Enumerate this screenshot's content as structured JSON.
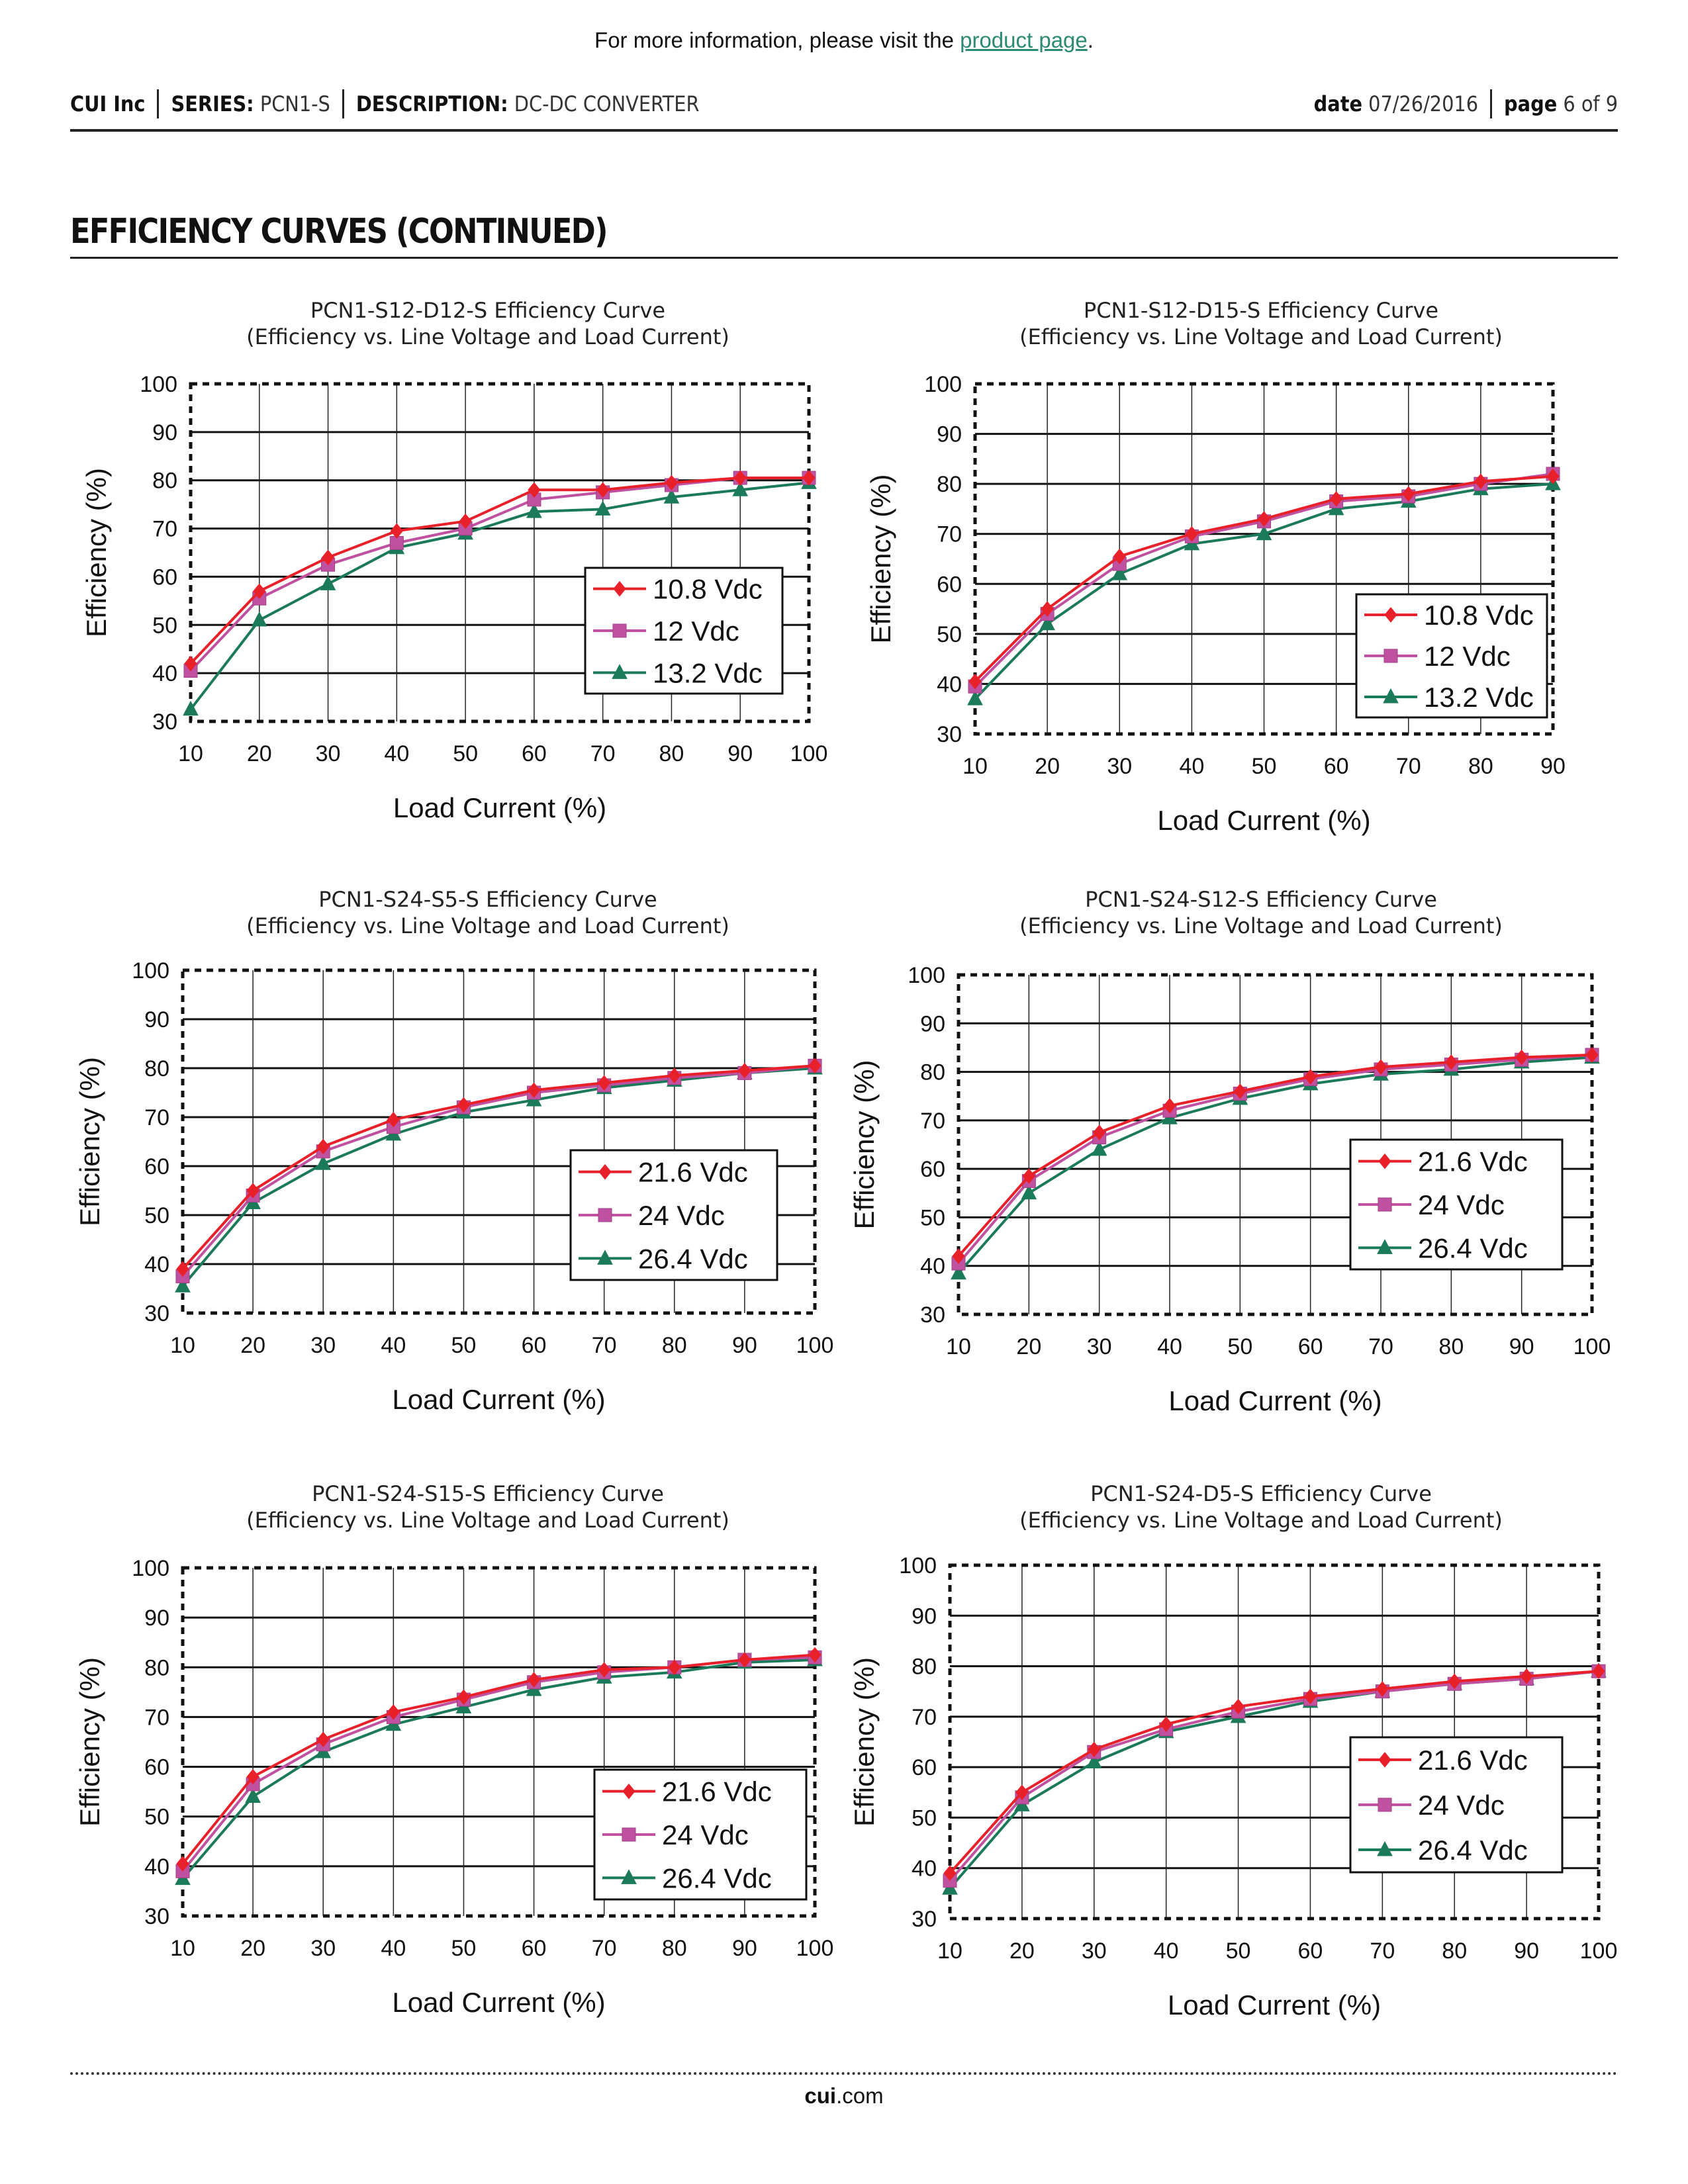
{
  "top_note": {
    "prefix": "For more information, please visit the ",
    "link": "product page",
    "suffix": "."
  },
  "header": {
    "company": "CUI Inc",
    "series_label": "SERIES:",
    "series_value": "PCN1-S",
    "description_label": "DESCRIPTION:",
    "description_value": "DC-DC CONVERTER",
    "date_label": "date",
    "date_value": "07/26/2016",
    "page_label": "page",
    "page_value": "6 of 9"
  },
  "section_title": "EFFICIENCY CURVES (CONTINUED)",
  "footer": {
    "brand": "cui",
    "domain": ".com"
  },
  "colors": {
    "red": "#e8202a",
    "magenta": "#c050a0",
    "green": "#1a7a5a",
    "grid": "#111111"
  },
  "chart_data": [
    {
      "type": "line",
      "title": "PCN1-S12-D12-S Efficiency Curve",
      "subtitle": "(Efficiency vs. Line Voltage and Load Current)",
      "xlabel": "Load Current (%)",
      "ylabel": "Efficiency (%)",
      "x": [
        10,
        20,
        30,
        40,
        50,
        60,
        70,
        80,
        90,
        100
      ],
      "xlim": [
        10,
        100
      ],
      "ylim": [
        30,
        100
      ],
      "yticks": [
        30,
        40,
        50,
        60,
        70,
        80,
        90,
        100
      ],
      "grid": true,
      "legend": "lower-right",
      "series": [
        {
          "name": "10.8 Vdc",
          "marker": "diamond",
          "values": [
            42,
            57,
            64,
            69.5,
            71.5,
            78,
            78,
            79.5,
            80.5,
            80.5
          ]
        },
        {
          "name": "12 Vdc",
          "marker": "square",
          "values": [
            40.5,
            55.5,
            62.5,
            67,
            70,
            76,
            77.5,
            79,
            80.5,
            80.5
          ]
        },
        {
          "name": "13.2 Vdc",
          "marker": "triangle",
          "values": [
            32.5,
            51,
            58.5,
            66,
            69,
            73.5,
            74,
            76.5,
            78,
            79.5
          ]
        }
      ]
    },
    {
      "type": "line",
      "title": "PCN1-S12-D15-S Efficiency Curve",
      "subtitle": "(Efficiency vs. Line Voltage and Load Current)",
      "xlabel": "Load Current (%)",
      "ylabel": "Efficiency (%)",
      "x": [
        10,
        20,
        30,
        40,
        50,
        60,
        70,
        80,
        90
      ],
      "xlim": [
        10,
        90
      ],
      "ylim": [
        30,
        100
      ],
      "yticks": [
        30,
        40,
        50,
        60,
        70,
        80,
        90,
        100
      ],
      "grid": true,
      "legend": "lower-right",
      "series": [
        {
          "name": "10.8 Vdc",
          "marker": "diamond",
          "values": [
            40.5,
            55,
            65.5,
            70,
            73,
            77,
            78,
            80.5,
            81.5
          ]
        },
        {
          "name": "12 Vdc",
          "marker": "square",
          "values": [
            39.5,
            54,
            64,
            69.5,
            72.5,
            76.5,
            77.5,
            80,
            82
          ]
        },
        {
          "name": "13.2 Vdc",
          "marker": "triangle",
          "values": [
            37,
            52,
            62,
            68,
            70,
            75,
            76.5,
            79,
            80
          ]
        }
      ]
    },
    {
      "type": "line",
      "title": "PCN1-S24-S5-S Efficiency Curve",
      "subtitle": "(Efficiency vs. Line Voltage and Load Current)",
      "xlabel": "Load Current (%)",
      "ylabel": "Efficiency (%)",
      "x": [
        10,
        20,
        30,
        40,
        50,
        60,
        70,
        80,
        90,
        100
      ],
      "xlim": [
        10,
        100
      ],
      "ylim": [
        30,
        100
      ],
      "yticks": [
        30,
        40,
        50,
        60,
        70,
        80,
        90,
        100
      ],
      "grid": true,
      "legend": "lower-right",
      "series": [
        {
          "name": "21.6 Vdc",
          "marker": "diamond",
          "values": [
            39,
            55,
            64,
            69.5,
            72.5,
            75.5,
            77,
            78.5,
            79.5,
            80.5
          ]
        },
        {
          "name": "24 Vdc",
          "marker": "square",
          "values": [
            37.5,
            54,
            63,
            68,
            72,
            75,
            76.5,
            78,
            79,
            80.5
          ]
        },
        {
          "name": "26.4 Vdc",
          "marker": "triangle",
          "values": [
            35.5,
            52.5,
            60.5,
            66.5,
            71,
            73.5,
            76,
            77.5,
            79,
            80
          ]
        }
      ]
    },
    {
      "type": "line",
      "title": "PCN1-S24-S12-S Efficiency Curve",
      "subtitle": "(Efficiency vs. Line Voltage and Load Current)",
      "xlabel": "Load Current (%)",
      "ylabel": "Efficiency (%)",
      "x": [
        10,
        20,
        30,
        40,
        50,
        60,
        70,
        80,
        90,
        100
      ],
      "xlim": [
        10,
        100
      ],
      "ylim": [
        30,
        100
      ],
      "yticks": [
        30,
        40,
        50,
        60,
        70,
        80,
        90,
        100
      ],
      "grid": true,
      "legend": "lower-right",
      "series": [
        {
          "name": "21.6 Vdc",
          "marker": "diamond",
          "values": [
            42,
            58.5,
            67.5,
            73,
            76,
            79,
            81,
            82,
            83,
            83.5
          ]
        },
        {
          "name": "24 Vdc",
          "marker": "square",
          "values": [
            40.5,
            57.5,
            66.5,
            72,
            75.5,
            78.5,
            80.5,
            81.5,
            82.5,
            83.5
          ]
        },
        {
          "name": "26.4 Vdc",
          "marker": "triangle",
          "values": [
            38.5,
            55,
            64,
            70.5,
            74.5,
            77.5,
            79.5,
            80.5,
            82,
            83
          ]
        }
      ]
    },
    {
      "type": "line",
      "title": "PCN1-S24-S15-S Efficiency Curve",
      "subtitle": "(Efficiency vs. Line Voltage and Load Current)",
      "xlabel": "Load Current (%)",
      "ylabel": "Efficiency (%)",
      "x": [
        10,
        20,
        30,
        40,
        50,
        60,
        70,
        80,
        90,
        100
      ],
      "xlim": [
        10,
        100
      ],
      "ylim": [
        30,
        100
      ],
      "yticks": [
        30,
        40,
        50,
        60,
        70,
        80,
        90,
        100
      ],
      "grid": true,
      "legend": "lower-right",
      "series": [
        {
          "name": "21.6 Vdc",
          "marker": "diamond",
          "values": [
            40.5,
            58,
            65.5,
            71,
            74,
            77.5,
            79.5,
            80,
            81.5,
            82.5
          ]
        },
        {
          "name": "24 Vdc",
          "marker": "square",
          "values": [
            39,
            56.5,
            64.5,
            70,
            73.5,
            77,
            79,
            80,
            81.5,
            82
          ]
        },
        {
          "name": "26.4 Vdc",
          "marker": "triangle",
          "values": [
            37.5,
            54,
            63,
            68.5,
            72,
            75.5,
            78,
            79,
            81,
            81.5
          ]
        }
      ]
    },
    {
      "type": "line",
      "title": "PCN1-S24-D5-S Efficiency Curve",
      "subtitle": "(Efficiency vs. Line Voltage and Load Current)",
      "xlabel": "Load Current (%)",
      "ylabel": "Efficiency (%)",
      "x": [
        10,
        20,
        30,
        40,
        50,
        60,
        70,
        80,
        90,
        100
      ],
      "xlim": [
        10,
        100
      ],
      "ylim": [
        30,
        100
      ],
      "yticks": [
        30,
        40,
        50,
        60,
        70,
        80,
        90,
        100
      ],
      "grid": true,
      "legend": "lower-right",
      "series": [
        {
          "name": "21.6 Vdc",
          "marker": "diamond",
          "values": [
            39,
            55,
            63.5,
            68.5,
            72,
            74,
            75.5,
            77,
            78,
            79
          ]
        },
        {
          "name": "24 Vdc",
          "marker": "square",
          "values": [
            37.5,
            54,
            63,
            67.5,
            71,
            73.5,
            75,
            76.5,
            77.5,
            79
          ]
        },
        {
          "name": "26.4 Vdc",
          "marker": "triangle",
          "values": [
            36,
            52.5,
            61,
            67,
            70,
            73,
            75,
            76.5,
            77.5,
            79
          ]
        }
      ]
    }
  ]
}
